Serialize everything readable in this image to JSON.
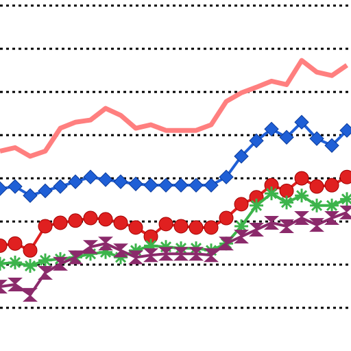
{
  "chart_data": {
    "type": "line",
    "x": [
      0,
      1,
      2,
      3,
      4,
      5,
      6,
      7,
      8,
      9,
      10,
      11,
      12,
      13,
      14,
      15,
      16,
      17,
      18,
      19,
      20,
      21,
      22,
      23
    ],
    "xlim": [
      0,
      23.27
    ],
    "ylim": [
      -1,
      7.13
    ],
    "yticks": [
      0,
      1,
      2,
      3,
      4,
      5,
      6,
      7
    ],
    "grid": true,
    "series": [
      {
        "color": "#ff7f7f",
        "marker": "none",
        "values": [
          3.63,
          3.71,
          3.51,
          3.63,
          4.16,
          4.3,
          4.35,
          4.62,
          4.46,
          4.16,
          4.24,
          4.11,
          4.11,
          4.11,
          4.24,
          4.78,
          4.98,
          5.11,
          5.25,
          5.17,
          5.73,
          5.46,
          5.38,
          5.62
        ]
      },
      {
        "color": "#1f5fd6",
        "marker": "diamond",
        "values": [
          2.76,
          2.81,
          2.6,
          2.71,
          2.81,
          2.92,
          3.03,
          2.97,
          2.92,
          2.87,
          2.84,
          2.84,
          2.84,
          2.84,
          2.84,
          3.03,
          3.51,
          3.87,
          4.14,
          3.95,
          4.3,
          3.92,
          3.76,
          4.11
        ]
      },
      {
        "color": "#e02020",
        "marker": "ball",
        "values": [
          1.44,
          1.49,
          1.33,
          1.89,
          1.97,
          2.02,
          2.08,
          2.05,
          1.97,
          1.86,
          1.65,
          1.94,
          1.89,
          1.86,
          1.86,
          2.08,
          2.4,
          2.56,
          2.84,
          2.71,
          3.0,
          2.81,
          2.84,
          3.03
        ]
      },
      {
        "color": "#3cb44b",
        "marker": "star",
        "values": [
          1.02,
          1.05,
          0.97,
          1.1,
          1.13,
          1.17,
          1.25,
          1.29,
          1.17,
          1.33,
          1.44,
          1.41,
          1.38,
          1.38,
          1.33,
          1.49,
          1.89,
          2.37,
          2.65,
          2.44,
          2.6,
          2.37,
          2.37,
          2.52
        ]
      },
      {
        "color": "#8b2a6b",
        "marker": "bowtie",
        "values": [
          0.49,
          0.54,
          0.3,
          0.81,
          1.02,
          1.17,
          1.41,
          1.49,
          1.33,
          1.17,
          1.22,
          1.25,
          1.25,
          1.25,
          1.22,
          1.49,
          1.65,
          1.81,
          1.97,
          1.89,
          2.08,
          1.92,
          2.08,
          2.21
        ]
      }
    ]
  }
}
